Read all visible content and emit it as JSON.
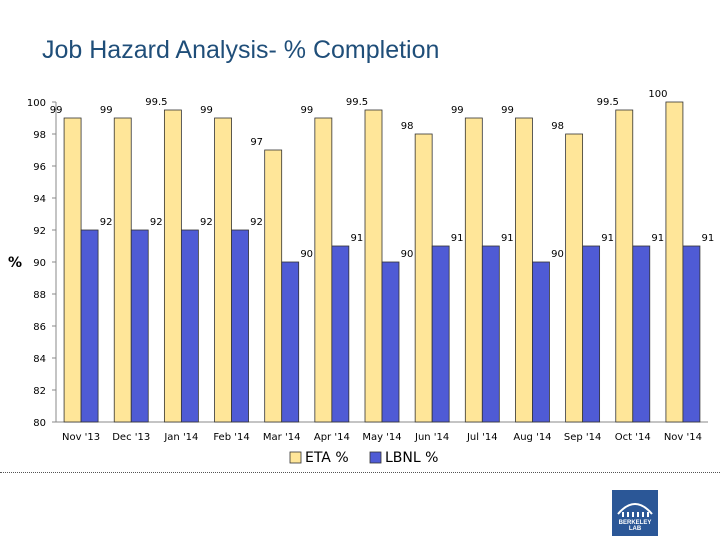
{
  "page": {
    "title": "Job Hazard Analysis- % Completion",
    "logo_text": "BERKELEY LAB"
  },
  "chart_data": {
    "type": "bar",
    "title": "Job Hazard Analysis- % Completion",
    "xlabel": "",
    "ylabel": "%",
    "ylim": [
      80,
      100
    ],
    "yticks": [
      80,
      82,
      84,
      86,
      88,
      90,
      92,
      94,
      96,
      98,
      100
    ],
    "grid": false,
    "legend": "bottom",
    "categories": [
      "Nov '13",
      "Dec '13",
      "Jan '14",
      "Feb '14",
      "Mar '14",
      "Apr '14",
      "May '14",
      "Jun '14",
      "Jul '14",
      "Aug '14",
      "Sep '14",
      "Oct '14",
      "Nov '14"
    ],
    "series": [
      {
        "name": "ETA %",
        "color": "#ffe699",
        "values": [
          99,
          99,
          99.5,
          99,
          97,
          99,
          99.5,
          98,
          99,
          99,
          98,
          99.5,
          100
        ]
      },
      {
        "name": "LBNL %",
        "color": "#4f5bd5",
        "values": [
          92,
          92,
          92,
          92,
          90,
          91,
          90,
          91,
          91,
          90,
          91,
          91,
          91
        ]
      }
    ]
  }
}
